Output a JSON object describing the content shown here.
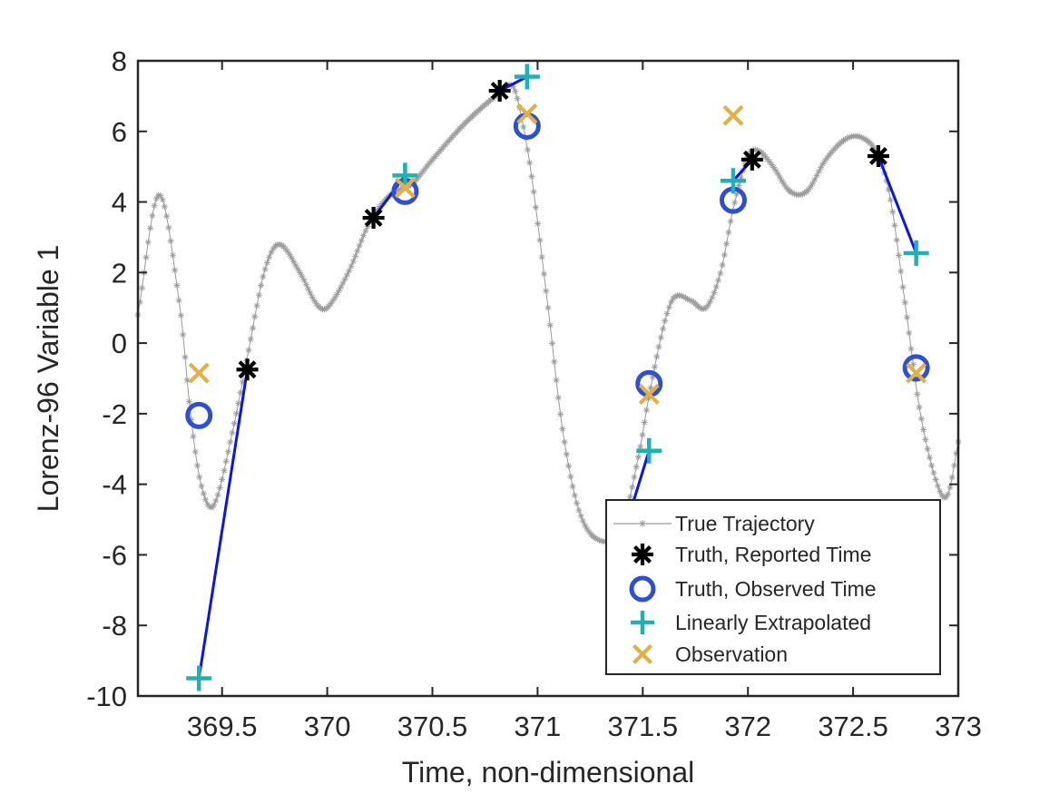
{
  "chart_data": {
    "type": "scatter",
    "title": "",
    "xlabel": "Time, non-dimensional",
    "ylabel": "Lorenz-96 Variable 1",
    "xlim": [
      369.1,
      373
    ],
    "ylim": [
      -10,
      8
    ],
    "xticks": [
      369.5,
      370,
      370.5,
      371,
      371.5,
      372,
      372.5,
      373
    ],
    "xtick_labels": [
      "369.5",
      "370",
      "370.5",
      "371",
      "371.5",
      "372",
      "372.5",
      "373"
    ],
    "yticks": [
      -10,
      -8,
      -6,
      -4,
      -2,
      0,
      2,
      4,
      6,
      8
    ],
    "ytick_labels": [
      "-10",
      "-8",
      "-6",
      "-4",
      "-2",
      "0",
      "2",
      "4",
      "6",
      "8"
    ],
    "grid": false,
    "legend_position": "bottom-right",
    "trajectory_knots": [
      [
        369.1,
        0.8
      ],
      [
        369.2,
        4.2
      ],
      [
        369.3,
        1.0
      ],
      [
        369.35,
        -2.0
      ],
      [
        369.4,
        -4.0
      ],
      [
        369.46,
        -4.6
      ],
      [
        369.55,
        -2.5
      ],
      [
        369.62,
        -0.4
      ],
      [
        369.7,
        2.0
      ],
      [
        369.77,
        2.8
      ],
      [
        369.87,
        2.0
      ],
      [
        369.95,
        1.1
      ],
      [
        370.0,
        1.0
      ],
      [
        370.1,
        2.0
      ],
      [
        370.2,
        3.4
      ],
      [
        370.3,
        4.2
      ],
      [
        370.4,
        4.5
      ],
      [
        370.5,
        5.2
      ],
      [
        370.65,
        6.2
      ],
      [
        370.8,
        7.0
      ],
      [
        370.88,
        7.3
      ],
      [
        370.92,
        6.5
      ],
      [
        370.97,
        4.8
      ],
      [
        371.05,
        1.0
      ],
      [
        371.12,
        -2.5
      ],
      [
        371.2,
        -4.8
      ],
      [
        371.3,
        -5.6
      ],
      [
        371.4,
        -5.2
      ],
      [
        371.48,
        -3.2
      ],
      [
        371.53,
        -1.5
      ],
      [
        371.6,
        0.5
      ],
      [
        371.65,
        1.3
      ],
      [
        371.73,
        1.2
      ],
      [
        371.8,
        1.0
      ],
      [
        371.87,
        2.0
      ],
      [
        371.93,
        3.8
      ],
      [
        372.0,
        5.3
      ],
      [
        372.05,
        5.45
      ],
      [
        372.12,
        5.0
      ],
      [
        372.2,
        4.3
      ],
      [
        372.28,
        4.3
      ],
      [
        372.37,
        5.2
      ],
      [
        372.47,
        5.8
      ],
      [
        372.55,
        5.8
      ],
      [
        372.62,
        5.3
      ],
      [
        372.68,
        4.0
      ],
      [
        372.75,
        1.0
      ],
      [
        372.82,
        -2.0
      ],
      [
        372.9,
        -4.0
      ],
      [
        372.95,
        -4.3
      ],
      [
        373.0,
        -2.8
      ]
    ],
    "series": [
      {
        "name": "True Trajectory",
        "kind": "trajectory",
        "color": "#9a9a9a"
      },
      {
        "name": "Truth, Reported Time",
        "kind": "asterisk",
        "color": "#000000",
        "points": [
          [
            369.62,
            -0.75
          ],
          [
            370.22,
            3.55
          ],
          [
            370.82,
            7.15
          ],
          [
            372.02,
            5.2
          ],
          [
            372.62,
            5.3
          ]
        ]
      },
      {
        "name": "Truth, Observed Time",
        "kind": "circle",
        "color": "#2e4fd0",
        "points": [
          [
            369.39,
            -2.05
          ],
          [
            370.37,
            4.3
          ],
          [
            370.95,
            6.15
          ],
          [
            371.53,
            -1.15
          ],
          [
            371.93,
            4.05
          ],
          [
            372.8,
            -0.7
          ]
        ]
      },
      {
        "name": "Linearly Extrapolated",
        "kind": "plus",
        "color": "#20b2b2",
        "points": [
          [
            369.39,
            -9.5
          ],
          [
            370.37,
            4.75
          ],
          [
            370.95,
            7.55
          ],
          [
            371.53,
            -3.05
          ],
          [
            371.93,
            4.6
          ],
          [
            372.8,
            2.55
          ]
        ]
      },
      {
        "name": "Observation",
        "kind": "cross",
        "color": "#e0b04a",
        "points": [
          [
            369.39,
            -0.85
          ],
          [
            370.37,
            4.4
          ],
          [
            370.95,
            6.5
          ],
          [
            371.53,
            -1.45
          ],
          [
            371.93,
            6.45
          ],
          [
            372.8,
            -0.85
          ]
        ]
      }
    ],
    "extrapolation_segments": {
      "color": "#0a14e6",
      "segments": [
        [
          [
            369.62,
            -0.75
          ],
          [
            369.39,
            -9.5
          ]
        ],
        [
          [
            370.22,
            3.55
          ],
          [
            370.37,
            4.75
          ]
        ],
        [
          [
            370.82,
            7.15
          ],
          [
            370.95,
            7.55
          ]
        ],
        [
          [
            371.45,
            -4.6
          ],
          [
            371.53,
            -3.05
          ]
        ],
        [
          [
            371.93,
            4.6
          ],
          [
            372.02,
            5.2
          ]
        ],
        [
          [
            372.62,
            5.3
          ],
          [
            372.8,
            2.55
          ]
        ]
      ]
    }
  }
}
